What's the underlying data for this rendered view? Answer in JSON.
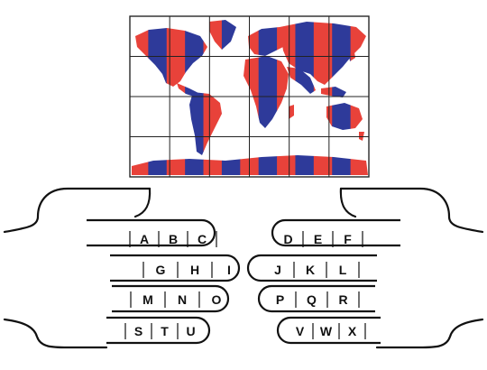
{
  "colors": {
    "red": "#e8423a",
    "blue": "#2e3a9a",
    "ink": "#111111",
    "grid": "#222222"
  },
  "map": {
    "icon": "world-map-icon",
    "grid_columns": 6,
    "grid_rows": 4,
    "stripe_count": 13
  },
  "hands": {
    "left": {
      "icon": "left-hand-icon",
      "rows": [
        [
          "A",
          "B",
          "C"
        ],
        [
          "G",
          "H",
          "I"
        ],
        [
          "M",
          "N",
          "O"
        ],
        [
          "S",
          "T",
          "U"
        ]
      ]
    },
    "right": {
      "icon": "right-hand-icon",
      "rows": [
        [
          "D",
          "E",
          "F"
        ],
        [
          "J",
          "K",
          "L"
        ],
        [
          "P",
          "Q",
          "R"
        ],
        [
          "V",
          "W",
          "X"
        ]
      ]
    }
  }
}
